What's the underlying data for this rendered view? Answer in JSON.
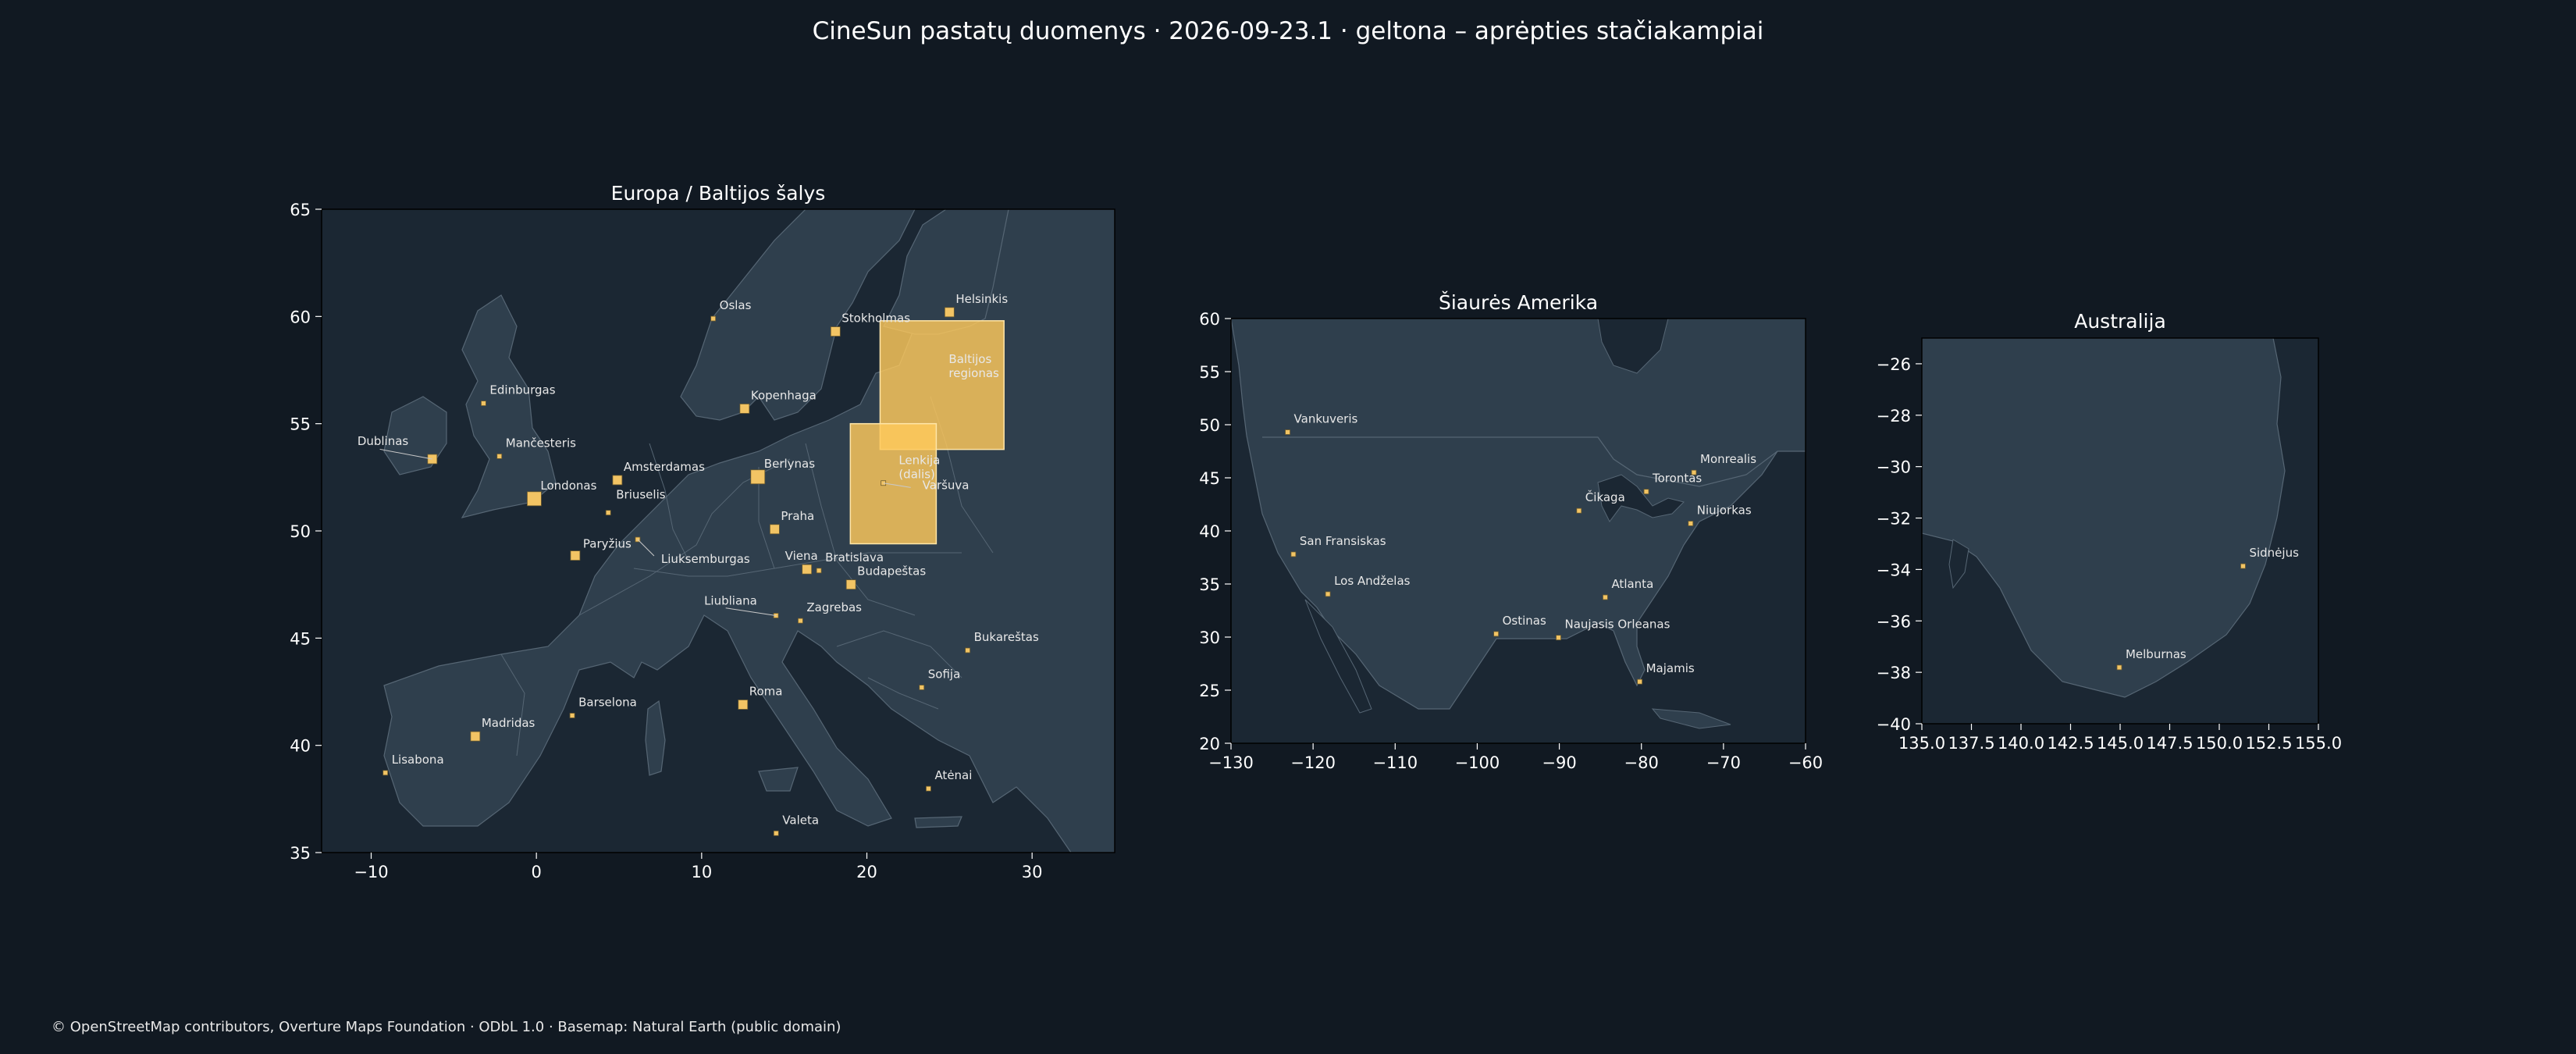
{
  "title": "CineSun pastatų duomenys · 2026-09-23.1 · geltona – aprėpties stačiakampiai",
  "credit": "© OpenStreetMap contributors, Overture Maps Foundation · ODbL 1.0 · Basemap: Natural Earth (public domain)",
  "colors": {
    "background": "#111922",
    "sea": "#1b2733",
    "land": "#2f3f4d",
    "border": "#566674",
    "marker": "#f2c464",
    "coverage": "#ffc95c"
  },
  "chart_data": [
    {
      "type": "map",
      "title": "Europa / Baltijos šalys",
      "xlim": [
        -13,
        35
      ],
      "ylim": [
        35,
        65
      ],
      "xticks": [
        -10,
        0,
        10,
        20,
        30
      ],
      "yticks": [
        35,
        40,
        45,
        50,
        55,
        60,
        65
      ],
      "coverage": [
        {
          "label": "Baltijos regionas",
          "lon": [
            20.8,
            28.3
          ],
          "lat": [
            53.8,
            59.8
          ]
        },
        {
          "label": "Lenkija (dalis)",
          "lon": [
            19,
            24.2
          ],
          "lat": [
            49.4,
            55
          ]
        }
      ],
      "cities": [
        {
          "name": "Helsinkis",
          "lon": 25.0,
          "lat": 60.2,
          "s": 1
        },
        {
          "name": "Oslas",
          "lon": 10.7,
          "lat": 59.9,
          "s": 0
        },
        {
          "name": "Stokholmas",
          "lon": 18.1,
          "lat": 59.3,
          "s": 1
        },
        {
          "name": "Kopenhaga",
          "lon": 12.6,
          "lat": 55.7,
          "s": 1
        },
        {
          "name": "Edinburgas",
          "lon": -3.2,
          "lat": 55.95,
          "s": 0
        },
        {
          "name": "Dublinas",
          "lon": -6.3,
          "lat": 53.35,
          "s": 1
        },
        {
          "name": "Mančesteris",
          "lon": -2.24,
          "lat": 53.48,
          "s": 0
        },
        {
          "name": "Amsterdamas",
          "lon": 4.9,
          "lat": 52.37,
          "s": 1
        },
        {
          "name": "Berlynas",
          "lon": 13.4,
          "lat": 52.52,
          "s": 2
        },
        {
          "name": "Londonas",
          "lon": -0.13,
          "lat": 51.5,
          "s": 2
        },
        {
          "name": "Varšuva",
          "lon": 21.0,
          "lat": 52.23,
          "s": 0
        },
        {
          "name": "Briuselis",
          "lon": 4.35,
          "lat": 50.85,
          "s": 0
        },
        {
          "name": "Praha",
          "lon": 14.42,
          "lat": 50.08,
          "s": 1
        },
        {
          "name": "Paryžius",
          "lon": 2.35,
          "lat": 48.85,
          "s": 1
        },
        {
          "name": "Liuksemburgas",
          "lon": 6.13,
          "lat": 49.6,
          "s": 0
        },
        {
          "name": "Viena",
          "lon": 16.37,
          "lat": 48.21,
          "s": 1
        },
        {
          "name": "Bratislava",
          "lon": 17.1,
          "lat": 48.15,
          "s": 0
        },
        {
          "name": "Budapeštas",
          "lon": 19.04,
          "lat": 47.5,
          "s": 1
        },
        {
          "name": "Liubliana",
          "lon": 14.5,
          "lat": 46.05,
          "s": 0
        },
        {
          "name": "Zagrebas",
          "lon": 15.98,
          "lat": 45.81,
          "s": 0
        },
        {
          "name": "Bukareštas",
          "lon": 26.1,
          "lat": 44.43,
          "s": 0
        },
        {
          "name": "Sofija",
          "lon": 23.32,
          "lat": 42.7,
          "s": 0
        },
        {
          "name": "Roma",
          "lon": 12.5,
          "lat": 41.9,
          "s": 1
        },
        {
          "name": "Barselona",
          "lon": 2.17,
          "lat": 41.39,
          "s": 0
        },
        {
          "name": "Madridas",
          "lon": -3.7,
          "lat": 40.42,
          "s": 1
        },
        {
          "name": "Lisabona",
          "lon": -9.14,
          "lat": 38.72,
          "s": 0
        },
        {
          "name": "Atėnai",
          "lon": 23.73,
          "lat": 37.98,
          "s": 0
        },
        {
          "name": "Valeta",
          "lon": 14.51,
          "lat": 35.9,
          "s": 0
        }
      ]
    },
    {
      "type": "map",
      "title": "Šiaurės Amerika",
      "xlim": [
        -130,
        -60
      ],
      "ylim": [
        20,
        60
      ],
      "xticks": [
        -130,
        -120,
        -110,
        -100,
        -90,
        -80,
        -70,
        -60
      ],
      "yticks": [
        20,
        25,
        30,
        35,
        40,
        45,
        50,
        55,
        60
      ],
      "cities": [
        {
          "name": "Vankuveris",
          "lon": -123.1,
          "lat": 49.3,
          "s": 0
        },
        {
          "name": "Monrealis",
          "lon": -73.6,
          "lat": 45.5,
          "s": 0
        },
        {
          "name": "Torontas",
          "lon": -79.4,
          "lat": 43.7,
          "s": 0
        },
        {
          "name": "Čikaga",
          "lon": -87.6,
          "lat": 41.9,
          "s": 0
        },
        {
          "name": "Niujorkas",
          "lon": -74.0,
          "lat": 40.7,
          "s": 0
        },
        {
          "name": "San Fransiskas",
          "lon": -122.4,
          "lat": 37.8,
          "s": 0
        },
        {
          "name": "Los Andželas",
          "lon": -118.2,
          "lat": 34.05,
          "s": 0
        },
        {
          "name": "Atlanta",
          "lon": -84.4,
          "lat": 33.75,
          "s": 0
        },
        {
          "name": "Ostinas",
          "lon": -97.7,
          "lat": 30.3,
          "s": 0
        },
        {
          "name": "Naujasis Orleanas",
          "lon": -90.1,
          "lat": 29.95,
          "s": 0
        },
        {
          "name": "Majamis",
          "lon": -80.2,
          "lat": 25.8,
          "s": 0
        }
      ]
    },
    {
      "type": "map",
      "title": "Australija",
      "xlim": [
        135,
        155
      ],
      "ylim": [
        -40,
        -25
      ],
      "xticks": [
        135.0,
        137.5,
        140.0,
        142.5,
        145.0,
        147.5,
        150.0,
        152.5,
        155.0
      ],
      "yticks": [
        -40,
        -38,
        -36,
        -34,
        -32,
        -30,
        -28,
        -26
      ],
      "cities": [
        {
          "name": "Sidnėjus",
          "lon": 151.2,
          "lat": -33.87,
          "s": 0
        },
        {
          "name": "Melburnas",
          "lon": 144.96,
          "lat": -37.81,
          "s": 0
        }
      ]
    }
  ]
}
